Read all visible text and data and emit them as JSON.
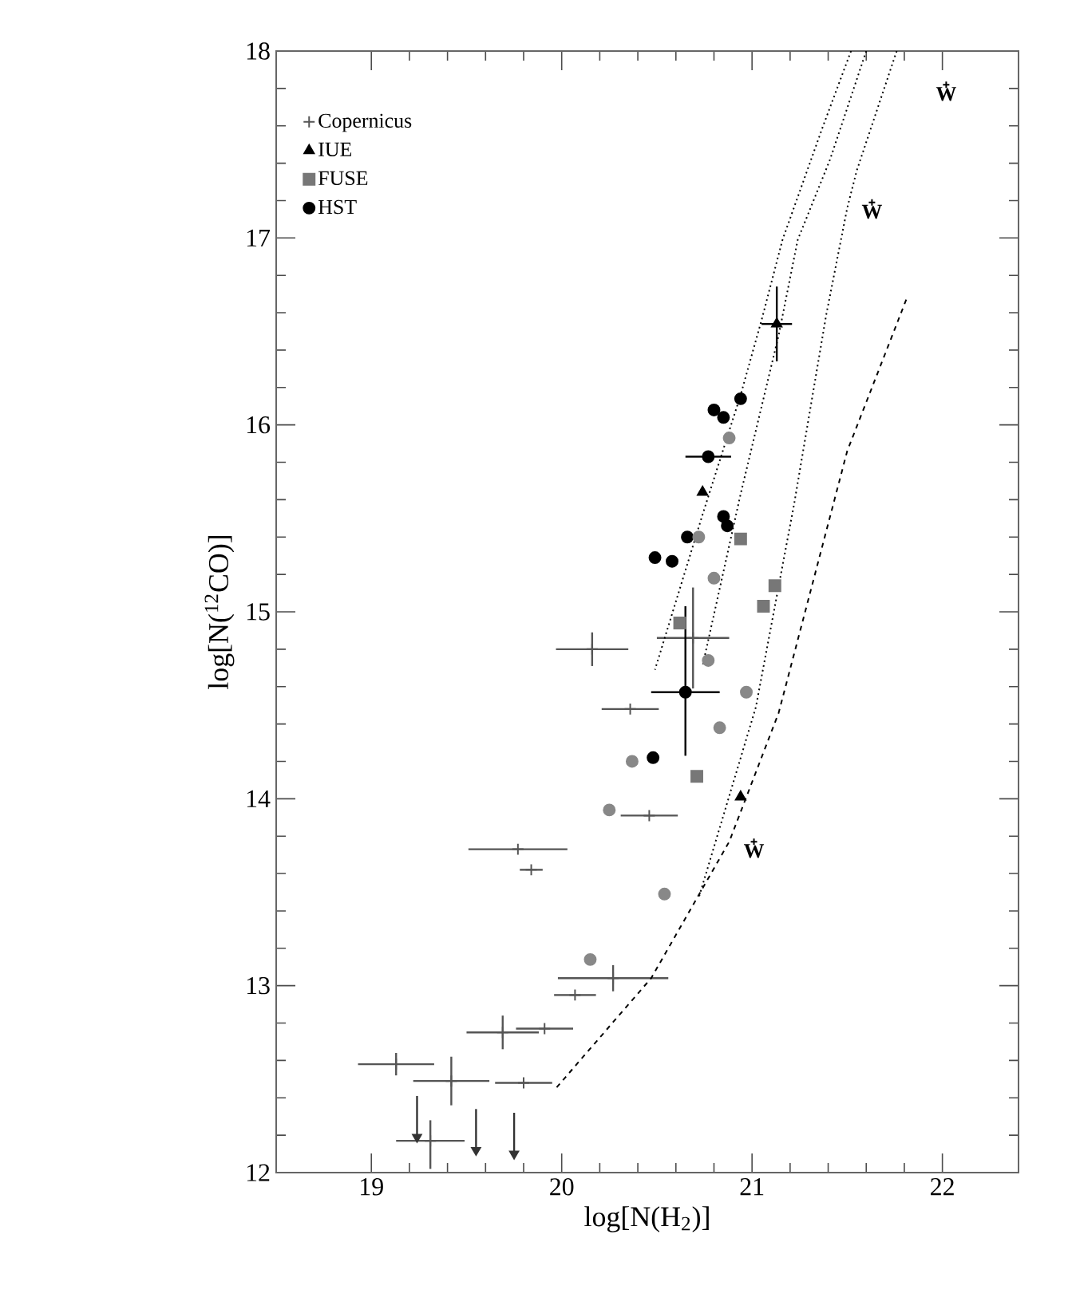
{
  "chart_data": {
    "type": "scatter",
    "xlabel": "log[N(H$_{2}$)]",
    "ylabel": "log[N($^{12}$CO)]",
    "xlim": [
      18.5,
      22.4
    ],
    "ylim": [
      12,
      18
    ],
    "xticks": [
      19,
      20,
      21,
      22
    ],
    "yticks": [
      12,
      13,
      14,
      15,
      16,
      17,
      18
    ],
    "legend": "top left",
    "series": [
      {
        "name": "Copernicus",
        "marker": "cross",
        "color": "#555555",
        "x": [
          20.36,
          20.46,
          19.77,
          19.84,
          20.27,
          20.07,
          19.69,
          19.91,
          19.13,
          19.42,
          19.8,
          19.31,
          20.16,
          20.69
        ],
        "values": [
          14.48,
          13.91,
          13.73,
          13.62,
          13.04,
          12.95,
          12.75,
          12.77,
          12.58,
          12.49,
          12.48,
          12.17,
          14.8,
          14.86
        ],
        "xerrors": [
          0.15,
          0.15,
          0.26,
          0.06,
          0.29,
          0.11,
          0.19,
          0.15,
          0.2,
          0.2,
          0.15,
          0.18,
          0.19,
          0.19
        ],
        "errors": [
          null,
          null,
          null,
          null,
          0.07,
          null,
          0.09,
          null,
          0.06,
          0.13,
          null,
          [
            12.02,
            12.28
          ],
          0.09,
          0.27
        ]
      },
      {
        "marker": "triangle",
        "color": "#333333",
        "x": [
          19.24,
          19.55,
          19.75
        ],
        "values": [
          12.19,
          12.12,
          12.1
        ],
        "errors": [
          [
            12.19,
            12.41
          ],
          [
            12.12,
            12.34
          ],
          [
            12.1,
            12.32
          ]
        ]
      },
      {
        "name": "IUE",
        "marker": "triangle",
        "color": "#000000",
        "x": [
          21.13,
          20.74,
          20.94
        ],
        "values": [
          16.54,
          15.64,
          14.01
        ],
        "xerrors": [
          0.08,
          null,
          null
        ],
        "errors": [
          0.2,
          null,
          null
        ]
      },
      {
        "name": "FUSE",
        "marker": "square",
        "color": "#777777",
        "x": [
          20.94,
          21.12,
          21.06,
          20.62,
          20.71
        ],
        "values": [
          15.39,
          15.14,
          15.03,
          14.94,
          14.12
        ]
      },
      {
        "name": "HST",
        "marker": "circle",
        "color": "#000000",
        "x": [
          20.94,
          20.8,
          20.85,
          20.77,
          20.85,
          20.87,
          20.66,
          20.49,
          20.58,
          20.65,
          20.48
        ],
        "values": [
          16.14,
          16.08,
          16.04,
          15.83,
          15.51,
          15.46,
          15.4,
          15.29,
          15.27,
          14.57,
          14.22
        ],
        "xerrors": [
          null,
          null,
          null,
          0.12,
          null,
          null,
          null,
          null,
          null,
          0.18,
          null
        ],
        "errors": [
          null,
          null,
          null,
          null,
          null,
          null,
          null,
          null,
          null,
          [
            14.23,
            15.03
          ],
          null
        ]
      },
      {
        "marker": "circle",
        "color": "#888888",
        "x": [
          20.88,
          20.72,
          20.8,
          20.77,
          20.97,
          20.83,
          20.37,
          20.25,
          20.54,
          20.15
        ],
        "values": [
          15.93,
          15.4,
          15.18,
          14.74,
          14.57,
          14.38,
          14.2,
          13.94,
          13.49,
          13.14
        ]
      },
      {
        "type": "line",
        "line_style": "dotted",
        "color": "#000000",
        "x": [
          21.52,
          21.37,
          21.16,
          21.05,
          20.94,
          20.74,
          20.49
        ],
        "values": [
          18.0,
          17.59,
          16.99,
          16.56,
          16.16,
          15.52,
          14.69
        ]
      },
      {
        "type": "line",
        "line_style": "dotted",
        "color": "#000000",
        "x": [
          21.6,
          21.41,
          21.24,
          21.14,
          20.94,
          20.74
        ],
        "values": [
          18.0,
          17.42,
          16.99,
          16.48,
          15.63,
          14.71
        ]
      },
      {
        "type": "line",
        "line_style": "dotted",
        "color": "#000000",
        "x": [
          21.76,
          21.55,
          21.5,
          21.39,
          21.22,
          21.02,
          20.72
        ],
        "values": [
          18.0,
          17.36,
          17.16,
          16.59,
          15.57,
          14.49,
          13.47
        ]
      },
      {
        "type": "line",
        "line_style": "dashed",
        "color": "#000000",
        "x": [
          21.81,
          21.5,
          21.14,
          20.88,
          20.47,
          19.96
        ],
        "values": [
          16.67,
          15.86,
          14.46,
          13.77,
          13.04,
          12.44
        ]
      },
      {
        "marker": "cross",
        "color": "#000000",
        "x": [
          22.02,
          21.63,
          21.01
        ],
        "values": [
          17.82,
          17.19,
          13.77
        ],
        "value_labels": [
          "W",
          "W",
          "W"
        ]
      }
    ]
  }
}
